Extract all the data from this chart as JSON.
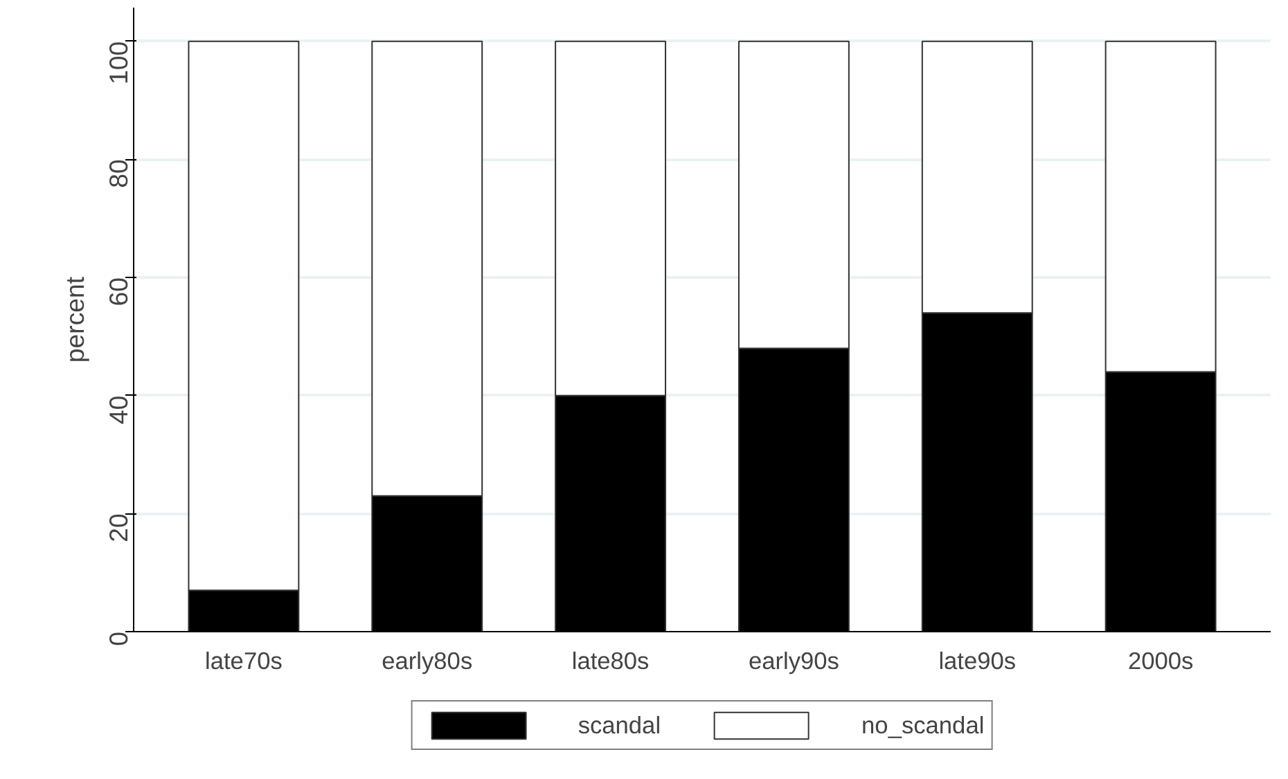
{
  "chart_data": {
    "type": "bar",
    "stacked": true,
    "ylabel": "percent",
    "categories": [
      "late70s",
      "early80s",
      "late80s",
      "early90s",
      "late90s",
      "2000s"
    ],
    "series": [
      {
        "name": "scandal",
        "color": "#000000",
        "values": [
          7,
          23,
          40,
          48,
          54,
          44
        ]
      },
      {
        "name": "no_scandal",
        "color": "#ffffff",
        "values": [
          93,
          77,
          60,
          52,
          46,
          56
        ]
      }
    ],
    "ylim": [
      0,
      105.7
    ],
    "yticks": [
      0,
      20,
      40,
      60,
      80,
      100
    ],
    "grid": "y",
    "legend": "bottom"
  }
}
